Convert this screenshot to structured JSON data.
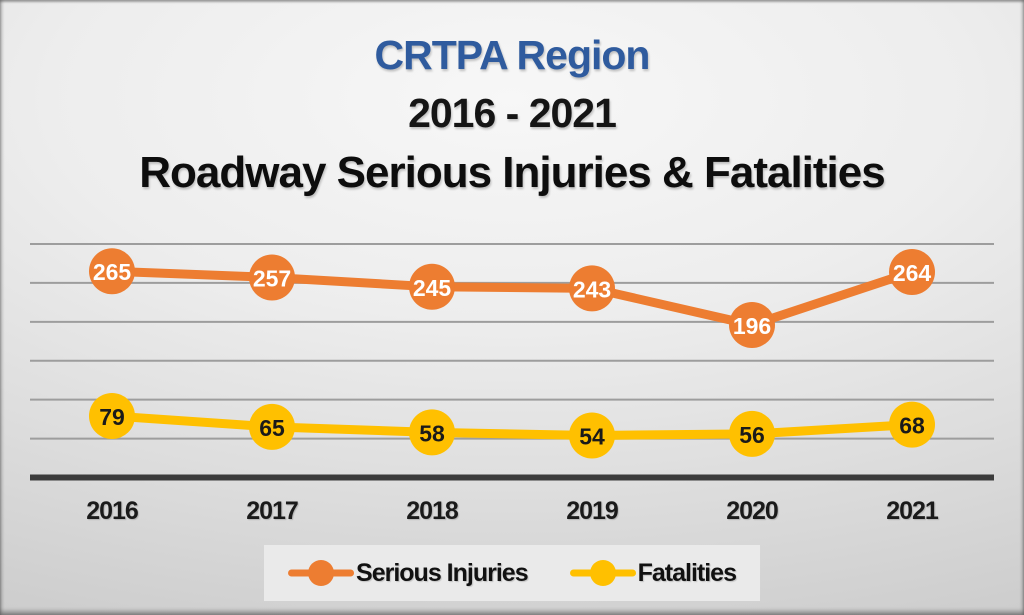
{
  "title": {
    "line1": "CRTPA Region",
    "line2": "2016 - 2021",
    "line3": "Roadway Serious Injuries & Fatalities"
  },
  "colors": {
    "title_blue": "#2F5B9E",
    "title_black": "#111111",
    "serious_injuries": "#ED7D31",
    "fatalities": "#FFC000",
    "gridline": "#9D9D9D",
    "axis_line": "#3B3B3B",
    "serious_injuries_label_text": "#FFFFFF",
    "fatalities_label_text": "#1A1A1A",
    "legend_background": "#EAEAEA"
  },
  "chart_data": {
    "type": "line",
    "title": "CRTPA Region 2016 - 2021 Roadway Serious Injuries & Fatalities",
    "xlabel": "",
    "ylabel": "",
    "categories": [
      "2016",
      "2017",
      "2018",
      "2019",
      "2020",
      "2021"
    ],
    "series": [
      {
        "name": "Serious Injuries",
        "values": [
          265,
          257,
          245,
          243,
          196,
          264
        ],
        "color": "#ED7D31",
        "label_color": "#FFFFFF"
      },
      {
        "name": "Fatalities",
        "values": [
          79,
          65,
          58,
          54,
          56,
          68
        ],
        "color": "#FFC000",
        "label_color": "#1A1A1A"
      }
    ],
    "ylim": [
      0,
      300
    ],
    "gridlines": {
      "visible": true,
      "step": 50,
      "max": 300,
      "y_tick_labels_shown": false
    },
    "data_labels": true,
    "marker_style": "filled-circle",
    "legend_position": "bottom"
  },
  "legend": {
    "items": [
      {
        "label": "Serious Injuries",
        "color": "#ED7D31"
      },
      {
        "label": "Fatalities",
        "color": "#FFC000"
      }
    ]
  }
}
